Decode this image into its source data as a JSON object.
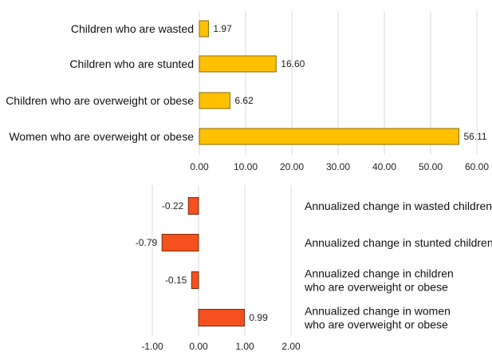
{
  "chart_data": [
    {
      "type": "bar",
      "orientation": "horizontal",
      "categories": [
        "Children who are wasted",
        "Children who are stunted",
        "Children who are overweight or obese",
        "Women who are overweight or obese"
      ],
      "values": [
        1.97,
        16.6,
        6.62,
        56.11
      ],
      "value_labels": [
        "1.97",
        "16.60",
        "6.62",
        "56.11"
      ],
      "xlim": [
        0,
        60
      ],
      "x_ticks": [
        "0.00",
        "10.00",
        "20.00",
        "30.00",
        "40.00",
        "50.00",
        "60.00"
      ],
      "grid": "vertical",
      "bar_color": "#FFC000",
      "bar_stroke": "#8a6a00"
    },
    {
      "type": "bar",
      "orientation": "horizontal",
      "categories": [
        "Annualized change in wasted children",
        "Annualized change in stunted children",
        "Annualized change in children who are overweight or obese",
        "Annualized change in women who are overweight or obese"
      ],
      "category_lines": [
        [
          "Annualized change in wasted children"
        ],
        [
          "Annualized change in stunted children"
        ],
        [
          "Annualized change in children",
          "who are overweight or obese"
        ],
        [
          "Annualized change in women",
          "who are overweight or obese"
        ]
      ],
      "values": [
        -0.22,
        -0.79,
        -0.15,
        0.99
      ],
      "value_labels": [
        "-0.22",
        "-0.79",
        "-0.15",
        "0.99"
      ],
      "xlim": [
        -1,
        2
      ],
      "x_ticks": [
        "-1.00",
        "0.00",
        "1.00",
        "2.00"
      ],
      "grid": "vertical",
      "bar_color": "#F4511E",
      "bar_stroke": "#7a2a0a"
    }
  ]
}
